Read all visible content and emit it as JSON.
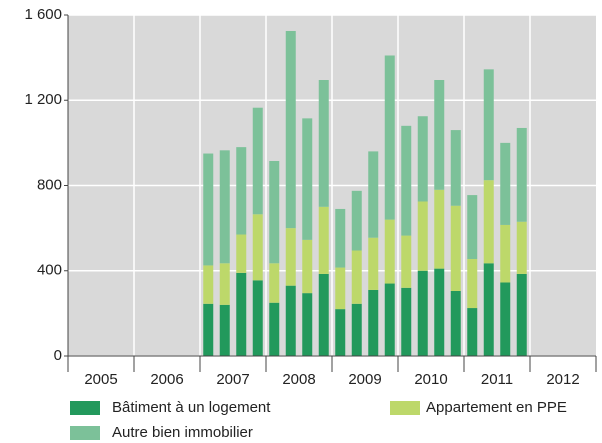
{
  "chart_data": {
    "type": "stacked_bar",
    "xticks": [
      "2005",
      "2006",
      "2007",
      "2008",
      "2009",
      "2010",
      "2011",
      "2012"
    ],
    "ylim": [
      0,
      1600
    ],
    "yticks": [
      0,
      400,
      800,
      {
        "value": 1200,
        "label": "1 200"
      },
      {
        "value": 1600,
        "label": "1 600"
      }
    ],
    "grid": true,
    "series": [
      {
        "name": "Bâtiment à un logement",
        "color": "#22995c",
        "values": [
          null,
          null,
          null,
          null,
          null,
          null,
          null,
          null,
          245,
          240,
          390,
          355,
          250,
          330,
          295,
          385,
          220,
          245,
          310,
          340,
          320,
          400,
          410,
          305,
          225,
          435,
          345,
          385,
          null,
          null,
          null,
          null
        ]
      },
      {
        "name": "Appartement en PPE",
        "color": "#bdd86a",
        "values": [
          null,
          null,
          null,
          null,
          null,
          null,
          null,
          null,
          180,
          195,
          180,
          310,
          185,
          270,
          250,
          315,
          195,
          250,
          245,
          300,
          245,
          325,
          370,
          400,
          230,
          390,
          270,
          245,
          null,
          null,
          null,
          null
        ]
      },
      {
        "name": "Autre bien immobilier",
        "color": "#7cc199",
        "values": [
          null,
          null,
          null,
          null,
          null,
          null,
          null,
          null,
          525,
          530,
          410,
          500,
          480,
          925,
          570,
          595,
          275,
          280,
          405,
          770,
          515,
          400,
          515,
          355,
          300,
          520,
          385,
          440,
          null,
          null,
          null,
          null
        ]
      }
    ]
  }
}
